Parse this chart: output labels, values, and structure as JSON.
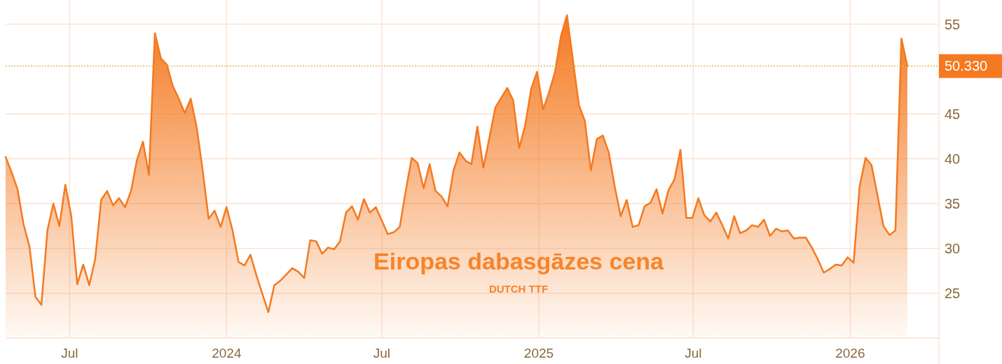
{
  "chart_data": {
    "type": "area",
    "title": "Eiropas dabasgāzes cena",
    "subtitle": "DUTCH TTF",
    "x": [
      "2023-04-17",
      "2023-04-24",
      "2023-05-01",
      "2023-05-08",
      "2023-05-15",
      "2023-05-22",
      "2023-05-29",
      "2023-06-05",
      "2023-06-12",
      "2023-06-19",
      "2023-06-26",
      "2023-07-03",
      "2023-07-10",
      "2023-07-17",
      "2023-07-24",
      "2023-07-31",
      "2023-08-07",
      "2023-08-14",
      "2023-08-21",
      "2023-08-28",
      "2023-09-04",
      "2023-09-11",
      "2023-09-18",
      "2023-09-25",
      "2023-10-02",
      "2023-10-09",
      "2023-10-16",
      "2023-10-23",
      "2023-10-30",
      "2023-11-06",
      "2023-11-13",
      "2023-11-20",
      "2023-11-27",
      "2023-12-04",
      "2023-12-11",
      "2023-12-18",
      "2023-12-25",
      "2024-01-01",
      "2024-01-08",
      "2024-01-15",
      "2024-01-22",
      "2024-01-29",
      "2024-02-05",
      "2024-02-12",
      "2024-02-19",
      "2024-02-26",
      "2024-03-04",
      "2024-03-11",
      "2024-03-18",
      "2024-03-25",
      "2024-04-01",
      "2024-04-08",
      "2024-04-15",
      "2024-04-22",
      "2024-04-29",
      "2024-05-06",
      "2024-05-13",
      "2024-05-20",
      "2024-05-27",
      "2024-06-03",
      "2024-06-10",
      "2024-06-17",
      "2024-06-24",
      "2024-07-01",
      "2024-07-08",
      "2024-07-15",
      "2024-07-22",
      "2024-07-29",
      "2024-08-05",
      "2024-08-12",
      "2024-08-19",
      "2024-08-26",
      "2024-09-02",
      "2024-09-09",
      "2024-09-16",
      "2024-09-23",
      "2024-09-30",
      "2024-10-07",
      "2024-10-14",
      "2024-10-21",
      "2024-10-28",
      "2024-11-04",
      "2024-11-11",
      "2024-11-18",
      "2024-11-25",
      "2024-12-02",
      "2024-12-09",
      "2024-12-16",
      "2024-12-23",
      "2024-12-30",
      "2025-01-06",
      "2025-01-13",
      "2025-01-20",
      "2025-01-27",
      "2025-02-03",
      "2025-02-10",
      "2025-02-17",
      "2025-02-24",
      "2025-03-03",
      "2025-03-10",
      "2025-03-17",
      "2025-03-24",
      "2025-03-31",
      "2025-04-07",
      "2025-04-14",
      "2025-04-21",
      "2025-04-28",
      "2025-05-05",
      "2025-05-12",
      "2025-05-19",
      "2025-05-26",
      "2025-06-02",
      "2025-06-09",
      "2025-06-16",
      "2025-06-23",
      "2025-06-30",
      "2025-07-07",
      "2025-07-14",
      "2025-07-21",
      "2025-07-28",
      "2025-08-04",
      "2025-08-11",
      "2025-08-18",
      "2025-08-25",
      "2025-09-01",
      "2025-09-08",
      "2025-09-15",
      "2025-09-22",
      "2025-09-29",
      "2025-10-06",
      "2025-10-13",
      "2025-10-20",
      "2025-10-27",
      "2025-11-03",
      "2025-11-10",
      "2025-11-17",
      "2025-11-24",
      "2025-12-01",
      "2025-12-08",
      "2025-12-15",
      "2025-12-22",
      "2025-12-29",
      "2026-01-05",
      "2026-01-12",
      "2026-01-19",
      "2026-01-26",
      "2026-02-02",
      "2026-02-09",
      "2026-02-16",
      "2026-02-23",
      "2026-03-02",
      "2026-03-09"
    ],
    "series": [
      {
        "color": "#f47920",
        "values": [
          40.2,
          38.5,
          36.6,
          32.7,
          30.2,
          24.6,
          23.7,
          32.0,
          35.0,
          32.5,
          37.1,
          33.6,
          26.0,
          28.2,
          25.9,
          28.8,
          35.4,
          36.4,
          34.8,
          35.6,
          34.6,
          36.4,
          39.9,
          41.9,
          38.2,
          54.0,
          51.2,
          50.5,
          48.1,
          46.7,
          45.1,
          46.7,
          43.5,
          38.7,
          33.3,
          34.2,
          32.4,
          34.6,
          32.0,
          28.5,
          28.1,
          29.3,
          27.0,
          24.9,
          22.9,
          25.9,
          26.4,
          27.1,
          27.8,
          27.4,
          26.7,
          30.9,
          30.8,
          29.4,
          30.1,
          29.9,
          30.8,
          34.0,
          34.7,
          33.2,
          35.5,
          34.0,
          34.6,
          33.1,
          31.6,
          31.8,
          32.4,
          36.4,
          40.1,
          39.5,
          36.7,
          39.4,
          36.4,
          35.8,
          34.7,
          38.7,
          40.7,
          39.8,
          39.4,
          43.6,
          39.0,
          42.3,
          45.7,
          46.8,
          47.9,
          46.5,
          41.2,
          43.7,
          47.8,
          49.7,
          45.5,
          47.4,
          49.7,
          53.7,
          56.0,
          51.0,
          46.0,
          44.2,
          38.7,
          42.2,
          42.6,
          40.7,
          36.9,
          33.6,
          35.4,
          32.4,
          32.6,
          34.7,
          35.1,
          36.6,
          33.9,
          36.5,
          37.7,
          41.0,
          33.4,
          33.4,
          35.6,
          33.7,
          33.0,
          34.0,
          32.6,
          31.1,
          33.6,
          31.7,
          32.0,
          32.6,
          32.4,
          33.2,
          31.4,
          32.2,
          31.9,
          32.0,
          31.1,
          31.2,
          31.2,
          30.1,
          28.8,
          27.3,
          27.7,
          28.2,
          28.1,
          29.0,
          28.4,
          36.9,
          40.1,
          39.3,
          35.9,
          32.5,
          31.5,
          32.0,
          53.4,
          50.33
        ]
      }
    ],
    "xlim": [
      "2023-04-17",
      "2026-04-15"
    ],
    "xticks": [
      {
        "value": "2023-07-01",
        "label": "Jul"
      },
      {
        "value": "2024-01-01",
        "label": "2024"
      },
      {
        "value": "2024-07-01",
        "label": "Jul"
      },
      {
        "value": "2025-01-01",
        "label": "2025"
      },
      {
        "value": "2025-07-01",
        "label": "Jul"
      },
      {
        "value": "2026-01-01",
        "label": "2026"
      }
    ],
    "ylim": [
      20,
      57.7
    ],
    "yticks": [
      25,
      30,
      35,
      40,
      45,
      55
    ],
    "grid": true,
    "ref_lines": [
      {
        "axis": "y",
        "value": 50.33,
        "label": "50.330",
        "color": "#e0b040",
        "line_style": "dotted"
      }
    ]
  }
}
